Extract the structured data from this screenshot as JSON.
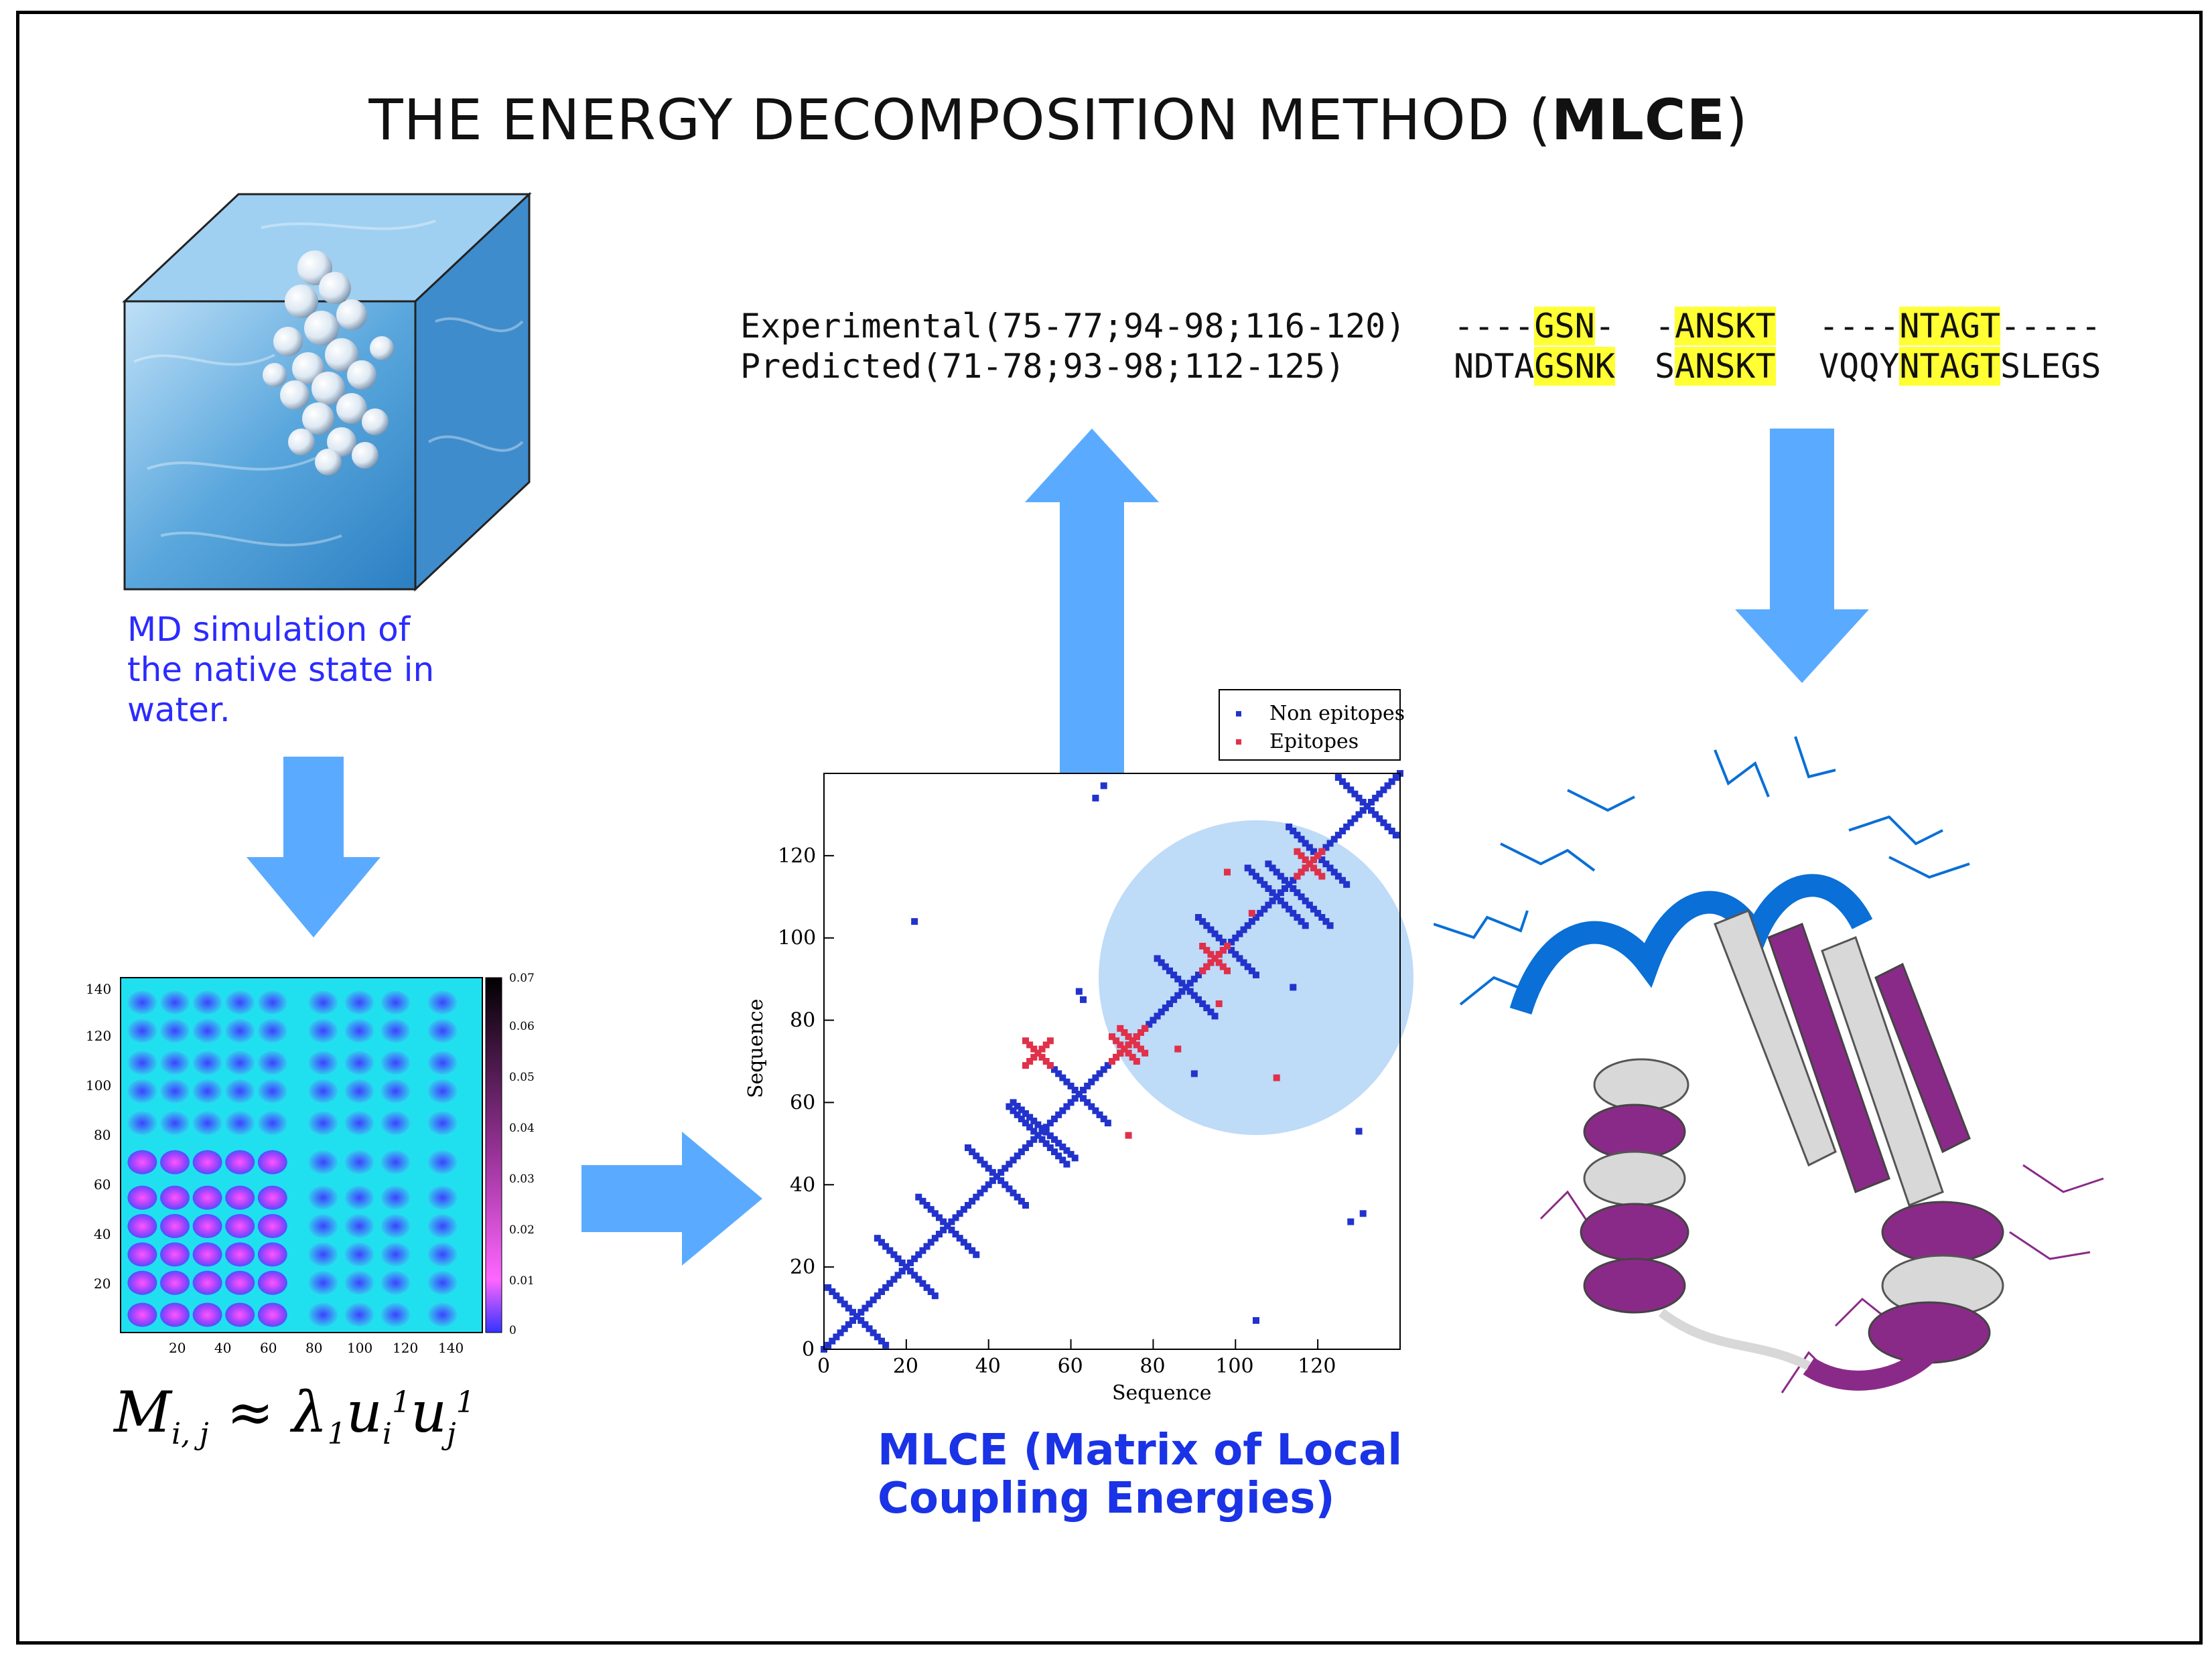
{
  "title": {
    "prefix": "THE ENERGY DECOMPOSITION METHOD (",
    "bold": "MLCE",
    "suffix": ")"
  },
  "alignment": {
    "experimental_label": "Experimental(75-77;94-98;116-120)",
    "predicted_label": "Predicted(71-78;93-98;112-125)",
    "experimental_segments": [
      {
        "pre": "----",
        "hl": "GSN",
        "post": "-"
      },
      {
        "pre": "-",
        "hl": "ANSKT",
        "post": ""
      },
      {
        "pre": "----",
        "hl": "NTAGT",
        "post": "-----"
      }
    ],
    "predicted_segments": [
      {
        "pre": "NDTA",
        "hl": "GSNK",
        "post": ""
      },
      {
        "pre": "S",
        "hl": "ANSKT",
        "post": ""
      },
      {
        "pre": "VQQY",
        "hl": "NTAGT",
        "post": "SLEGS"
      }
    ]
  },
  "md_caption": [
    "MD simulation of",
    "the native state in",
    "water."
  ],
  "mlce_caption": [
    "MLCE (Matrix of Local",
    "Coupling Energies)"
  ],
  "formula": {
    "M": "M",
    "sub1": "i, j",
    "approx": "≈",
    "lambda": "λ",
    "lsub": "1",
    "u": "u",
    "usub": "i",
    "usup": "1",
    "u2": "u",
    "u2sub": "j",
    "u2sup": "1"
  },
  "heatmap": {
    "x_ticks": [
      "20",
      "40",
      "60",
      "80",
      "100",
      "120",
      "140"
    ],
    "y_ticks": [
      "20",
      "40",
      "60",
      "80",
      "100",
      "120",
      "140"
    ],
    "colorbar_ticks": [
      "0",
      "0.01",
      "0.02",
      "0.03",
      "0.04",
      "0.05",
      "0.06",
      "0.07"
    ]
  },
  "chart_data": {
    "type": "scatter",
    "title": "",
    "xlabel": "Sequence",
    "ylabel": "Sequence",
    "xlim": [
      0,
      140
    ],
    "ylim": [
      0,
      140
    ],
    "x_ticks": [
      "0",
      "20",
      "40",
      "60",
      "80",
      "100",
      "120"
    ],
    "y_ticks": [
      "0",
      "20",
      "40",
      "60",
      "80",
      "100",
      "120"
    ],
    "legend": [
      {
        "name": "Non epitopes",
        "color": "#2233cc"
      },
      {
        "name": "Epitopes",
        "color": "#e0304a"
      }
    ],
    "legend_position": "top-right-outside",
    "series": [
      {
        "name": "Non epitopes",
        "diagonal_from": 0,
        "diagonal_to": 140
      },
      {
        "name": "Epitopes",
        "clusters": [
          [
            75,
            75
          ],
          [
            95,
            95
          ],
          [
            118,
            118
          ],
          [
            73,
            73
          ],
          [
            52,
            72
          ]
        ]
      }
    ]
  },
  "colors": {
    "arrow": "#5aabff",
    "highlight": "#ffff33",
    "md_caption": "#2b2bff",
    "mlce_caption": "#1a33e6",
    "protein_blue": "#0a6fd6",
    "protein_purple": "#8a2a88",
    "protein_white": "#d8d8d8"
  }
}
